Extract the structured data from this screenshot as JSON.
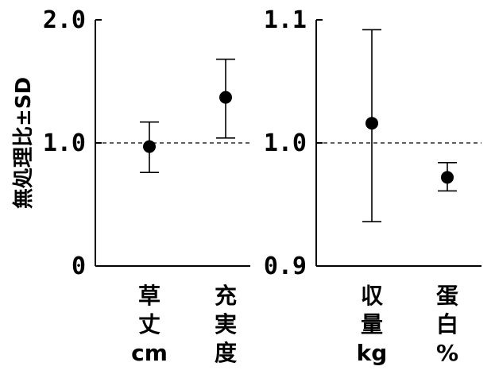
{
  "chart_data": [
    {
      "type": "scatter",
      "ylabel": "無処理比±SD",
      "ylim": [
        0,
        2.0
      ],
      "yticks": [
        "0",
        "1.0",
        "2.0"
      ],
      "reference_line": 1.0,
      "categories": [
        [
          "草",
          "丈",
          "cm"
        ],
        [
          "充",
          "実",
          "度"
        ]
      ],
      "points": [
        {
          "y": 0.97,
          "sd_low": 0.76,
          "sd_high": 1.17
        },
        {
          "y": 1.37,
          "sd_low": 1.04,
          "sd_high": 1.68
        }
      ]
    },
    {
      "type": "scatter",
      "ylim": [
        0.9,
        1.1
      ],
      "yticks": [
        "0.9",
        "1.0",
        "1.1"
      ],
      "reference_line": 1.0,
      "categories": [
        [
          "収",
          "量",
          "kg"
        ],
        [
          "蛋",
          "白",
          "%"
        ]
      ],
      "points": [
        {
          "y": 1.016,
          "sd_low": 0.936,
          "sd_high": 1.092
        },
        {
          "y": 0.972,
          "sd_low": 0.961,
          "sd_high": 0.984
        }
      ]
    }
  ]
}
